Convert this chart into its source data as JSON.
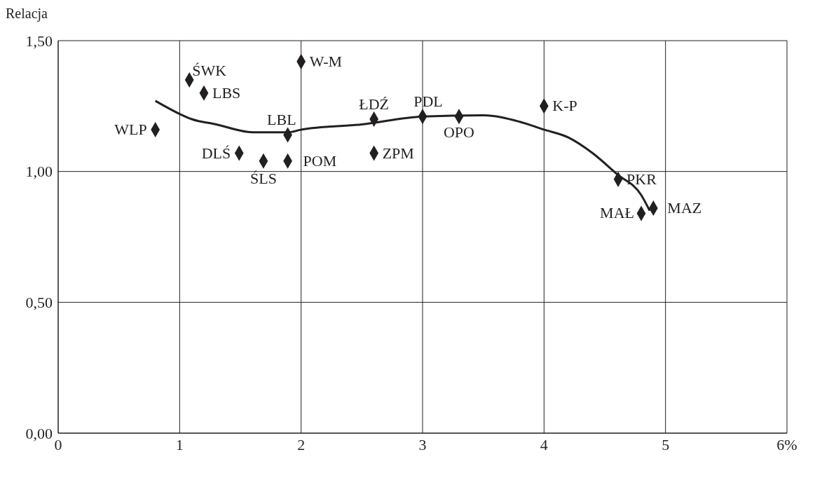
{
  "chart_data": {
    "type": "scatter",
    "ylabel": "Relacja",
    "xlim": [
      0,
      6
    ],
    "xticks": [
      0,
      1,
      2,
      3,
      4,
      5,
      {
        "value": 6,
        "label": "6%"
      }
    ],
    "ylim": [
      0,
      1.5
    ],
    "yticks": [
      {
        "value": 0,
        "label": "0,00"
      },
      {
        "value": 0.5,
        "label": "0,50"
      },
      {
        "value": 1,
        "label": "1,00"
      },
      {
        "value": 1.5,
        "label": "1,50"
      }
    ],
    "grid": true,
    "series": [
      {
        "marker": "diamond",
        "color": "#231f20",
        "x": [
          0.8,
          1.08,
          1.2,
          2.0,
          1.49,
          1.69,
          1.89,
          1.89,
          2.6,
          2.6,
          3.0,
          3.3,
          4.0,
          4.61,
          4.8,
          4.9
        ],
        "values": [
          1.16,
          1.35,
          1.3,
          1.42,
          1.07,
          1.04,
          1.04,
          1.14,
          1.2,
          1.07,
          1.21,
          1.21,
          1.25,
          0.97,
          0.84,
          0.86
        ],
        "value_labels": [
          "WLP",
          "ŚWK",
          "LBS",
          "W-M",
          "DLŚ",
          "ŚLS",
          "POM",
          "LBL",
          "ŁDŹ",
          "ZPM",
          "PDL",
          "OPO",
          "K-P",
          "PKR",
          "MAŁ",
          "MAZ"
        ]
      },
      {
        "type": "line",
        "marker": "none",
        "line_style": "solid",
        "color": "#231f20",
        "x": [
          0.8,
          1.0,
          1.1,
          1.3,
          1.6,
          1.9,
          2.0,
          2.5,
          3.0,
          3.5,
          3.8,
          4.0,
          4.2,
          4.4,
          4.6,
          4.8,
          4.87
        ],
        "values": [
          1.27,
          1.22,
          1.2,
          1.18,
          1.15,
          1.15,
          1.16,
          1.18,
          1.21,
          1.215,
          1.19,
          1.16,
          1.13,
          1.07,
          0.99,
          0.91,
          0.85
        ]
      }
    ]
  }
}
